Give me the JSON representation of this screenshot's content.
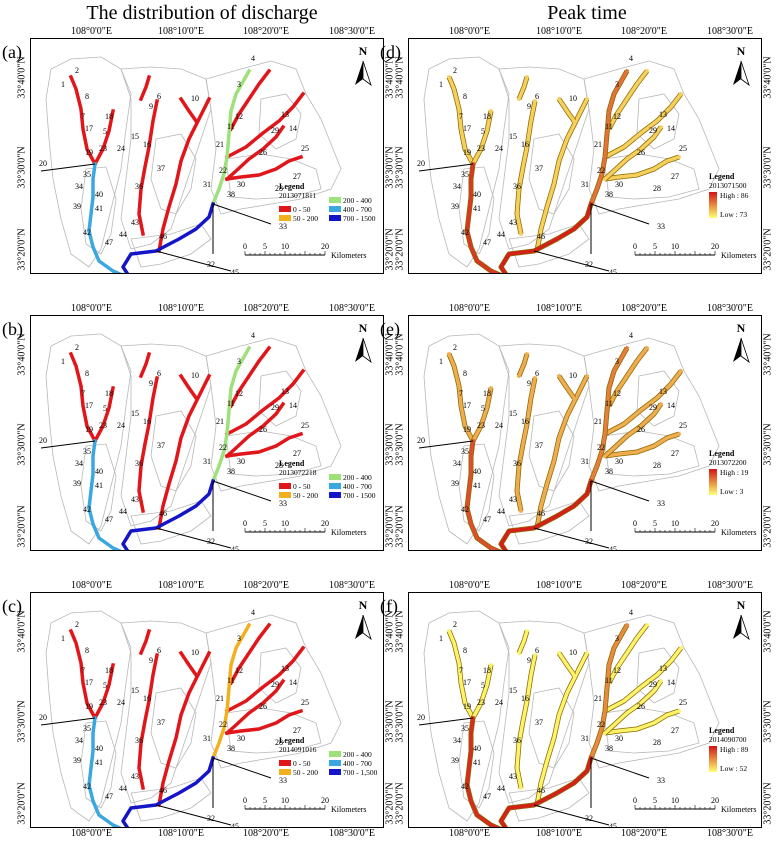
{
  "column_titles": {
    "left": "The distribution of  discharge",
    "right": "Peak time"
  },
  "longitude_labels": [
    "108°0'0\"E",
    "108°10'0\"E",
    "108°20'0\"E",
    "108°30'0\"E"
  ],
  "latitude_labels": [
    "33°40'0\"N",
    "33°30'0\"N",
    "33°20'0\"N"
  ],
  "north_label": "N",
  "scale_bar": {
    "ticks": [
      "0",
      "5",
      "10",
      "20"
    ],
    "unit": "Kilometers"
  },
  "colors": {
    "q_0_50": "#e0161a",
    "q_50_200": "#f2b01e",
    "q_200_400": "#9ee07a",
    "q_400_700": "#3aa7e0",
    "q_700_1500": "#1414c8",
    "boundary": "#b8b8b8",
    "peak_high": "#d21414",
    "peak_low": "#ffff6e"
  },
  "panels": [
    {
      "id": "a",
      "letter": "(a)",
      "type": "discharge",
      "legend_title": "Legend",
      "legend_code": "2013071811",
      "classes": [
        "0 - 50",
        "50 - 200",
        "200 - 400",
        "400 - 700",
        "700 - 1500"
      ],
      "reach_classes": {
        "down": 4,
        "mid": 3,
        "up": 2,
        "trib": 0
      }
    },
    {
      "id": "b",
      "letter": "(b)",
      "type": "discharge",
      "legend_title": "Legend",
      "legend_code": "2013072218",
      "classes": [
        "0 - 50",
        "50 - 200",
        "200 - 400",
        "400 - 700",
        "700 - 1500"
      ],
      "reach_classes": {
        "down": 4,
        "mid": 3,
        "up": 2,
        "trib": 0
      }
    },
    {
      "id": "c",
      "letter": "(c)",
      "type": "discharge",
      "legend_title": "Legend",
      "legend_code": "2014091016",
      "classes": [
        "0 - 50",
        "50 - 200",
        "200 - 400",
        "400 - 700",
        "700 - 1,500"
      ],
      "reach_classes": {
        "down": 4,
        "mid": 3,
        "up": 1,
        "trib": 0
      }
    },
    {
      "id": "d",
      "letter": "(d)",
      "type": "peak",
      "legend_title": "Legend",
      "legend_code": "2013071500",
      "high_label": "High : 86",
      "low_label": "Low : 73",
      "reach_levels": {
        "down": 0.95,
        "mid": 0.85,
        "up": 0.6,
        "trib": 0.2
      }
    },
    {
      "id": "e",
      "letter": "(e)",
      "type": "peak",
      "legend_title": "Legend",
      "legend_code": "2013072200",
      "high_label": "High : 19",
      "low_label": "Low : 3",
      "reach_levels": {
        "down": 0.95,
        "mid": 0.75,
        "up": 0.55,
        "trib": 0.35
      }
    },
    {
      "id": "f",
      "letter": "(f)",
      "type": "peak",
      "legend_title": "Legend",
      "legend_code": "2014090700",
      "high_label": "High : 89",
      "low_label": "Low : 52",
      "reach_levels": {
        "down": 0.95,
        "mid": 0.9,
        "up": 0.5,
        "trib": 0.05
      }
    }
  ],
  "reach_labels": [
    "1",
    "2",
    "3",
    "4",
    "5",
    "6",
    "7",
    "8",
    "9",
    "10",
    "11",
    "12",
    "13",
    "14",
    "15",
    "16",
    "17",
    "18",
    "19",
    "20",
    "21",
    "22",
    "23",
    "24",
    "25",
    "26",
    "27",
    "28",
    "29",
    "30",
    "31",
    "33",
    "34",
    "35",
    "36",
    "37",
    "38",
    "39",
    "40",
    "41",
    "42",
    "43",
    "44",
    "45",
    "46",
    "47",
    "32"
  ]
}
